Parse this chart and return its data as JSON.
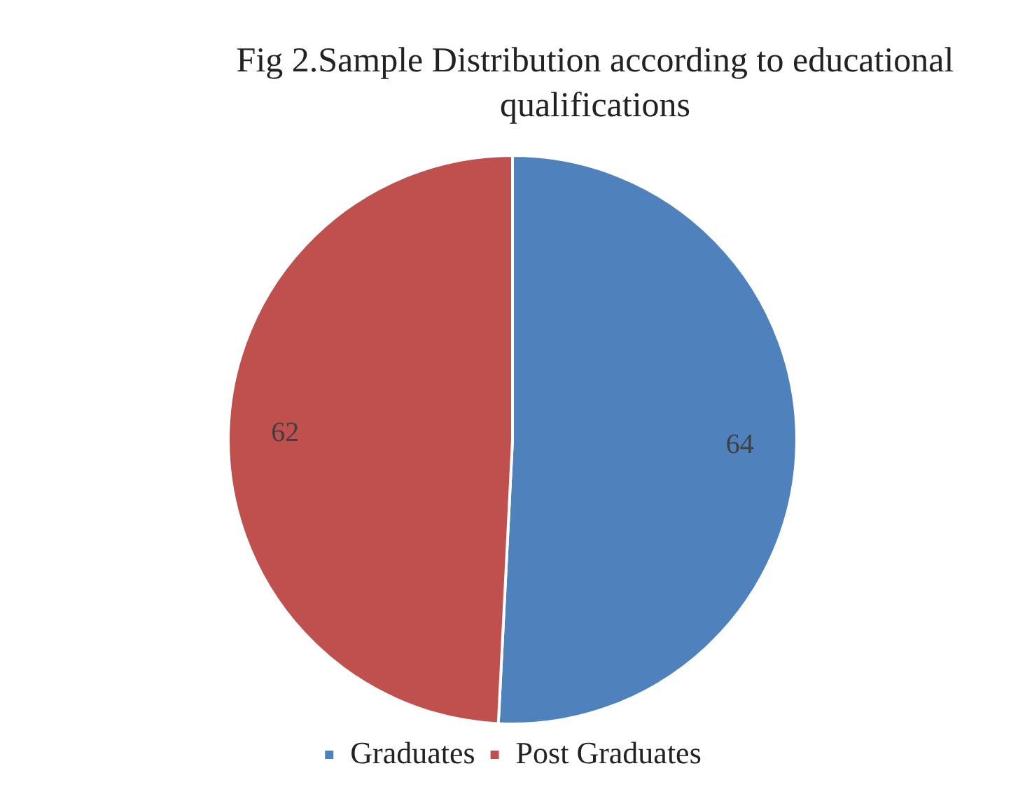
{
  "chart_data": {
    "type": "pie",
    "title": "Fig 2.Sample Distribution according to educational qualifications",
    "categories": [
      "Graduates",
      "Post Graduates"
    ],
    "values": [
      64,
      62
    ],
    "colors": [
      "#4f81bd",
      "#c0504d"
    ],
    "data_labels": true,
    "legend": "bottom"
  }
}
